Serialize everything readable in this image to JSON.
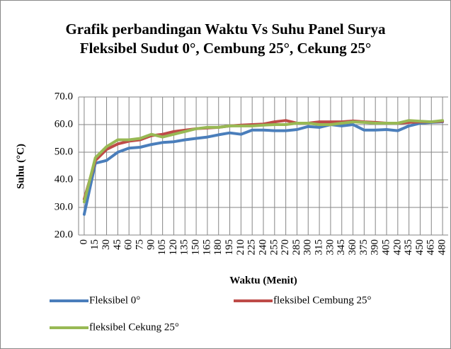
{
  "chart_data": {
    "type": "line",
    "title": "Grafik perbandingan Waktu Vs Suhu Panel Surya Fleksibel Sudut 0°, Cembung 25°, Cekung 25°",
    "x_label": "Waktu (Menit)",
    "y_label": "Suhu (°C)",
    "categories": [
      0,
      15,
      30,
      45,
      60,
      75,
      90,
      105,
      120,
      135,
      150,
      165,
      180,
      195,
      210,
      225,
      240,
      255,
      270,
      285,
      300,
      315,
      330,
      345,
      360,
      375,
      390,
      405,
      420,
      435,
      450,
      465,
      480
    ],
    "series": [
      {
        "name": "Fleksibel 0°",
        "color": "#4a7ebb",
        "values": [
          27.5,
          46,
          47,
          50,
          51.5,
          51.8,
          52.8,
          53.5,
          53.8,
          54.5,
          55,
          55.5,
          56.3,
          57,
          56.5,
          58,
          58,
          57.8,
          57.8,
          58.2,
          59.3,
          59,
          60,
          59.5,
          60,
          58,
          58,
          58.2,
          57.8,
          59.5,
          60.5,
          60.8,
          61
        ]
      },
      {
        "name": "fleksibel Cembung 25°",
        "color": "#be4b48",
        "values": [
          33,
          47,
          51,
          53,
          54,
          54.5,
          56,
          56.5,
          57.5,
          58,
          58.5,
          58.8,
          59,
          59.5,
          59.8,
          60,
          60.2,
          61,
          61.5,
          60.5,
          60.5,
          61,
          61,
          61,
          61.3,
          61,
          60.8,
          60.5,
          60.5,
          60.8,
          61,
          61,
          61.2
        ]
      },
      {
        "name": "fleksibel Cekung 25°",
        "color": "#98b954",
        "values": [
          32,
          48,
          52,
          54.5,
          54.5,
          55,
          56.5,
          55.5,
          56.5,
          57.5,
          58.5,
          59,
          59,
          59.5,
          59.5,
          59.5,
          59.8,
          60,
          60,
          60.5,
          60.5,
          60,
          60,
          60.5,
          61,
          60.8,
          60.5,
          60.5,
          60.5,
          61.5,
          61.2,
          61,
          61.5
        ]
      }
    ],
    "ylim": [
      20,
      70
    ],
    "yticks": [
      {
        "value": 20,
        "label": "20.0"
      },
      {
        "value": 30,
        "label": "30.0"
      },
      {
        "value": 40,
        "label": "40.0"
      },
      {
        "value": 50,
        "label": "50.0"
      },
      {
        "value": 60,
        "label": "60.0"
      },
      {
        "value": 70,
        "label": "70.0"
      }
    ],
    "grid": true,
    "legend": "bottom"
  }
}
